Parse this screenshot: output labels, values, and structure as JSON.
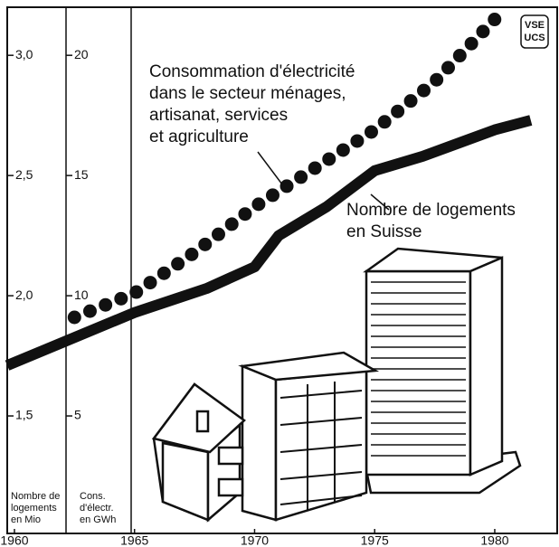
{
  "chart_data": {
    "type": "line",
    "logo": [
      "VSE",
      "UCS"
    ],
    "y_label": [
      "Nombre de",
      "logements",
      "en Mio"
    ],
    "y2_label": [
      "Cons.",
      "d'électr.",
      "en GWh"
    ],
    "annotations": [
      [
        "Consommation d'électricité",
        "dans le secteur ménages,",
        "artisanat, services",
        "et agriculture"
      ],
      [
        "Nombre de logements",
        "en Suisse"
      ]
    ],
    "series": [
      {
        "name": "Consommation d'électricité",
        "axis": "y2",
        "style": "dotted",
        "color": "#111111",
        "x": [
          1962.5,
          1965,
          1967.5,
          1970,
          1972.5,
          1975,
          1977.5,
          1980
        ],
        "values": [
          9.1,
          10.1,
          11.8,
          13.7,
          15.3,
          16.9,
          18.9,
          21.5
        ]
      },
      {
        "name": "Nombre de logements",
        "axis": "y",
        "style": "solid",
        "color": "#111111",
        "x": [
          1959.7,
          1965,
          1968,
          1970,
          1971,
          1973,
          1975,
          1977,
          1980,
          1981.5
        ],
        "values": [
          1.71,
          1.93,
          2.03,
          2.12,
          2.25,
          2.37,
          2.52,
          2.58,
          2.69,
          2.73
        ]
      }
    ],
    "xlim": [
      1959.7,
      1982.6
    ],
    "xticks": [
      1960,
      1965,
      1970,
      1975,
      1980
    ],
    "ylim": [
      1.0,
      3.2
    ],
    "yticks": [
      {
        "value": 1.5,
        "label": "1,5"
      },
      {
        "value": 2.0,
        "label": "2,0"
      },
      {
        "value": 2.5,
        "label": "2,5"
      },
      {
        "value": 3.0,
        "label": "3,0"
      }
    ],
    "y2lim": [
      0,
      22
    ],
    "y2ticks": [
      5,
      10,
      15,
      20
    ]
  }
}
